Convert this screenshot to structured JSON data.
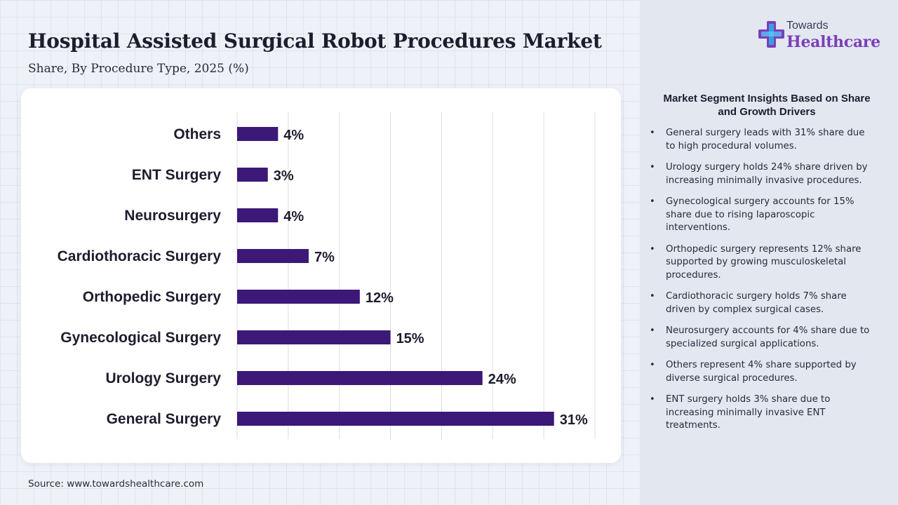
{
  "header": {
    "title": "Hospital Assisted Surgical Robot Procedures Market",
    "subtitle": "Share, By Procedure Type, 2025 (%)"
  },
  "chart_data": {
    "type": "bar",
    "orientation": "horizontal",
    "categories": [
      "Others",
      "ENT Surgery",
      "Neurosurgery",
      "Cardiothoracic Surgery",
      "Orthopedic Surgery",
      "Gynecological Surgery",
      "Urology Surgery",
      "General Surgery"
    ],
    "values": [
      4,
      3,
      4,
      7,
      12,
      15,
      24,
      31
    ],
    "data_labels": [
      "4%",
      "3%",
      "4%",
      "7%",
      "12%",
      "15%",
      "24%",
      "31%"
    ],
    "xlim": [
      0,
      35
    ],
    "grid": true,
    "bar_color": "#3c1878"
  },
  "source": "Source: www.towardshealthcare.com",
  "logo": {
    "line1": "Towards",
    "line2": "Healthcare"
  },
  "insights": {
    "title": "Market Segment Insights Based on Share and Growth Drivers",
    "bullet": "•",
    "items": [
      "General surgery leads with 31% share due to high procedural volumes.",
      "Urology surgery holds 24% share driven by increasing minimally invasive procedures.",
      "Gynecological surgery accounts for 15% share due to rising laparoscopic interventions.",
      "Orthopedic surgery represents 12% share supported by growing musculoskeletal procedures.",
      "Cardiothoracic surgery holds 7% share driven by complex surgical cases.",
      "Neurosurgery accounts for 4% share due to specialized surgical applications.",
      "Others represent 4% share supported by diverse surgical procedures.",
      "ENT surgery holds 3% share due to increasing minimally invasive ENT treatments."
    ]
  },
  "colors": {
    "bar": "#3c1878",
    "brand_purple": "#7b3fb8",
    "panel_bg": "#e3e7f0",
    "page_bg": "#eef1f7"
  }
}
